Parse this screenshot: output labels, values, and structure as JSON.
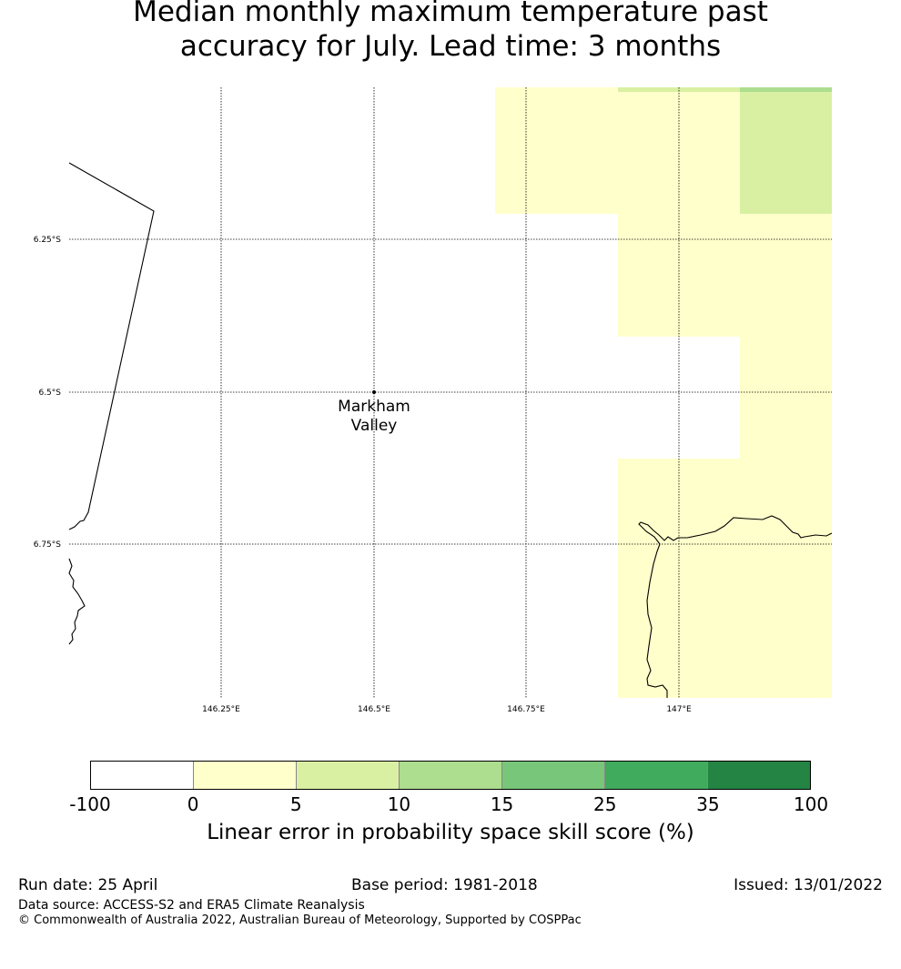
{
  "title": {
    "line1": "Median monthly maximum temperature past",
    "line2": "accuracy for July. Lead time: 3 months"
  },
  "map": {
    "lat_labels": [
      "6.25°S",
      "6.5°S",
      "6.75°S"
    ],
    "lon_labels": [
      "146.25°E",
      "146.5°E",
      "146.75°E",
      "147°E"
    ],
    "place": {
      "line1": "Markham",
      "line2": "Valley"
    }
  },
  "colorbar": {
    "colors": [
      "#ffffff",
      "#ffffcc",
      "#d9f0a3",
      "#addd8e",
      "#78c679",
      "#41ab5d",
      "#238443"
    ],
    "ticks": [
      "-100",
      "0",
      "5",
      "10",
      "15",
      "25",
      "35",
      "100"
    ],
    "label": "Linear error in probability space skill score (%)"
  },
  "footer": {
    "run_date": "Run date: 25 April",
    "base_period": "Base period: 1981-2018",
    "issued": "Issued: 13/01/2022",
    "data_source": "Data source: ACCESS-S2 and ERA5 Climate Reanalysis",
    "copyright": "© Commonwealth of Australia 2022, Australian Bureau of Meteorology, Supported by COSPPac"
  }
}
